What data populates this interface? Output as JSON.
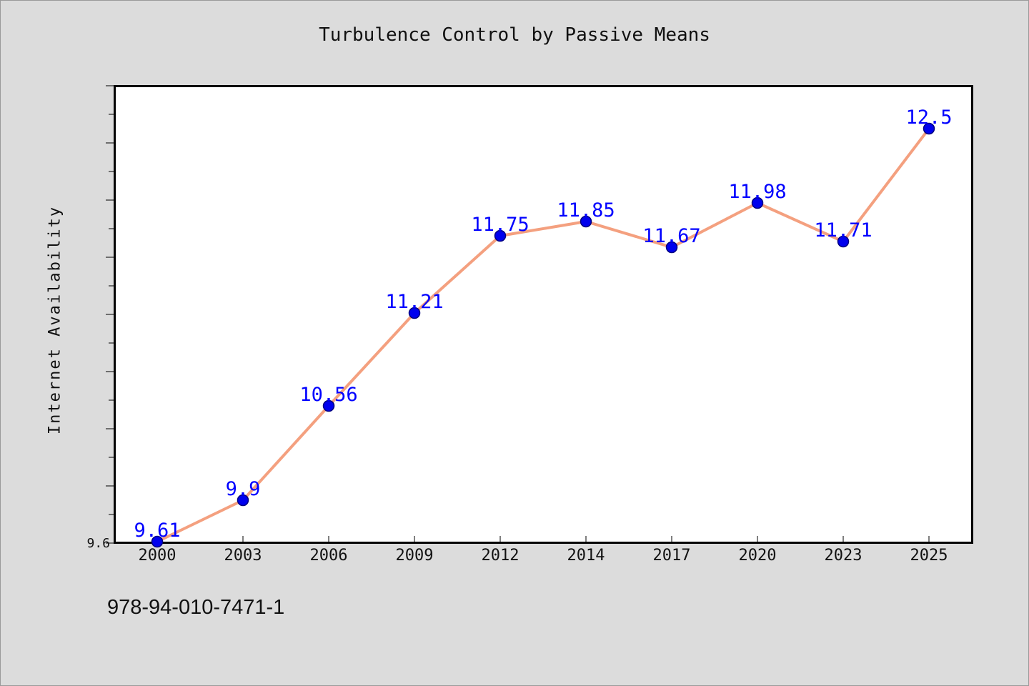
{
  "chart_data": {
    "type": "line",
    "title": "Turbulence Control by Passive Means",
    "xlabel": "",
    "ylabel": "Internet Availability",
    "categories": [
      "2000",
      "2003",
      "2006",
      "2009",
      "2012",
      "2014",
      "2017",
      "2020",
      "2023",
      "2025"
    ],
    "series": [
      {
        "values": [
          9.61,
          9.9,
          10.56,
          11.21,
          11.75,
          11.85,
          11.67,
          11.98,
          11.71,
          12.5
        ],
        "labels": [
          "9.61",
          "9.9",
          "10.56",
          "11.21",
          "11.75",
          "11.85",
          "11.67",
          "11.98",
          "11.71",
          "12.5"
        ]
      }
    ],
    "ylim": [
      9.6,
      12.8
    ],
    "yticks_labeled": [
      {
        "value": 9.6,
        "label": "9.6"
      }
    ],
    "grid": false,
    "legend": "none",
    "colors": {
      "line": "#f4a07f",
      "marker": "#0000ee",
      "marker_edge": "#000080",
      "data_label": "#0000ff",
      "background": "#dcdcdc",
      "plot_background": "#ffffff"
    }
  },
  "footnote": "978-94-010-7471-1"
}
